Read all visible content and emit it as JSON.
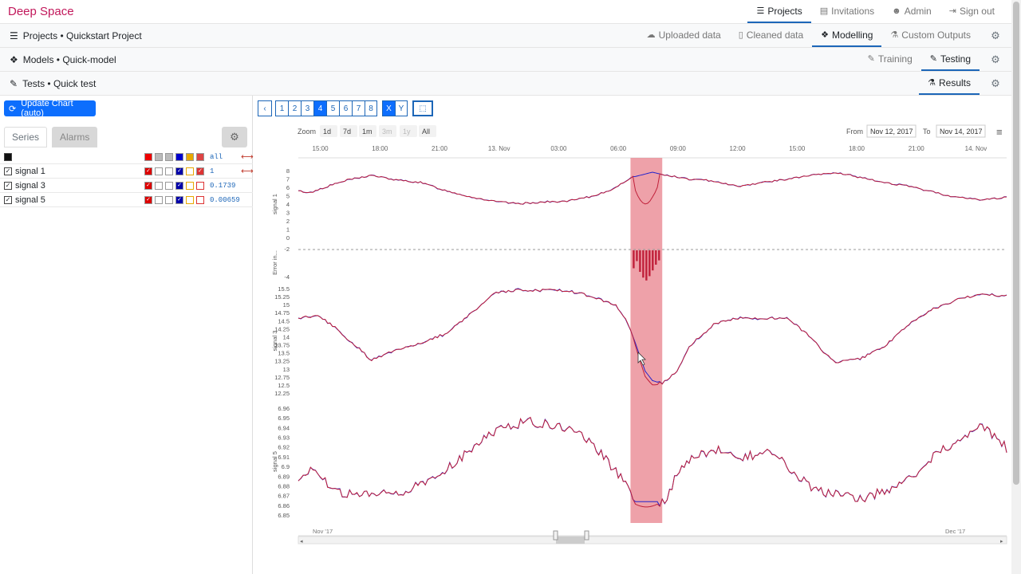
{
  "brand": "Deep Space",
  "topnav": {
    "projects": "Projects",
    "invitations": "Invitations",
    "admin": "Admin",
    "signout": "Sign out"
  },
  "breadcrumbs": {
    "projects": "Projects • Quickstart Project",
    "models": "Models • Quick-model",
    "tests": "Tests • Quick test"
  },
  "row2nav": {
    "uploaded": "Uploaded data",
    "cleaned": "Cleaned data",
    "modelling": "Modelling",
    "custom": "Custom Outputs"
  },
  "row3nav": {
    "training": "Training",
    "testing": "Testing"
  },
  "row4nav": {
    "results": "Results"
  },
  "left": {
    "update_button": "Update Chart (auto)",
    "tab_series": "Series",
    "tab_alarms": "Alarms",
    "all_label": "all",
    "series": [
      {
        "name": "signal 1",
        "value": "1"
      },
      {
        "name": "signal 3",
        "value": "0.1739"
      },
      {
        "name": "signal 5",
        "value": "0.00659"
      }
    ]
  },
  "toolbar": {
    "pages": [
      "1",
      "2",
      "3",
      "4",
      "5",
      "6",
      "7",
      "8"
    ],
    "active_page": "4",
    "x": "X",
    "y": "Y"
  },
  "chart": {
    "zoom_label": "Zoom",
    "zoom_options": [
      "1d",
      "7d",
      "1m",
      "3m",
      "1y",
      "All"
    ],
    "from_label": "From",
    "from": "Nov 12, 2017",
    "to_label": "To",
    "to": "Nov 14, 2017",
    "x_ticks": [
      "15:00",
      "18:00",
      "21:00",
      "13. Nov",
      "03:00",
      "06:00",
      "09:00",
      "12:00",
      "15:00",
      "18:00",
      "21:00",
      "14. Nov"
    ],
    "navigator_labels": [
      "Nov '17",
      "Dec '17"
    ],
    "colors": {
      "actual": "#c0203a",
      "predicted": "#2222cc",
      "highlight": "#e8818c"
    }
  },
  "chart_data": {
    "type": "line",
    "panes": [
      {
        "ylabel": "signal 1",
        "ticks": [
          "8",
          "7",
          "6",
          "5",
          "4",
          "3",
          "2",
          "1",
          "0"
        ],
        "ylim": [
          0,
          8.5
        ],
        "series": [
          {
            "name": "actual"
          },
          {
            "name": "predicted"
          }
        ],
        "anchors": [
          [
            0,
            5.9
          ],
          [
            0.5,
            5.7
          ],
          [
            1,
            6.3
          ],
          [
            2,
            7.3
          ],
          [
            3,
            7.9
          ],
          [
            4,
            7.3
          ],
          [
            5,
            7.0
          ],
          [
            6,
            6.0
          ],
          [
            7,
            5.2
          ],
          [
            8,
            4.6
          ],
          [
            9,
            4.3
          ],
          [
            10,
            4.5
          ],
          [
            11,
            4.6
          ],
          [
            12,
            5.2
          ],
          [
            13,
            6.3
          ],
          [
            13.6,
            7.6
          ],
          [
            14.5,
            8.3
          ],
          [
            14.9,
            8.0
          ],
          [
            16,
            7.4
          ],
          [
            17,
            7.2
          ],
          [
            18,
            6.5
          ],
          [
            19,
            7.0
          ],
          [
            20,
            7.4
          ],
          [
            21,
            7.9
          ],
          [
            22,
            8.2
          ],
          [
            22.5,
            8.0
          ],
          [
            23,
            7.6
          ],
          [
            24,
            7.0
          ],
          [
            25,
            6.5
          ],
          [
            26,
            5.8
          ],
          [
            26.5,
            5.4
          ],
          [
            27,
            5.1
          ],
          [
            28,
            4.8
          ],
          [
            29,
            5.1
          ]
        ]
      },
      {
        "ylabel": "Error in...",
        "ticks": [
          "-2",
          "-4"
        ],
        "ylim": [
          -5.5,
          0.5
        ]
      },
      {
        "ylabel": "signal 3",
        "ticks": [
          "15.5",
          "15.25",
          "15",
          "14.75",
          "14.5",
          "14.25",
          "14",
          "13.75",
          "13.5",
          "13.25",
          "13",
          "12.75",
          "12.5",
          "12.25"
        ],
        "ylim": [
          12.2,
          15.55
        ],
        "anchors": [
          [
            0,
            14.6
          ],
          [
            0.8,
            14.7
          ],
          [
            1.5,
            14.3
          ],
          [
            2.5,
            13.6
          ],
          [
            3,
            13.25
          ],
          [
            4,
            13.6
          ],
          [
            5,
            13.8
          ],
          [
            6,
            14.1
          ],
          [
            7,
            14.7
          ],
          [
            8,
            15.4
          ],
          [
            9,
            15.5
          ],
          [
            10,
            15.5
          ],
          [
            11,
            15.5
          ],
          [
            12,
            15.3
          ],
          [
            13,
            15.0
          ],
          [
            13.4,
            14.6
          ],
          [
            13.8,
            13.8
          ],
          [
            14.2,
            12.9
          ],
          [
            14.5,
            12.6
          ],
          [
            14.9,
            12.5
          ],
          [
            15.5,
            12.9
          ],
          [
            16,
            13.7
          ],
          [
            17,
            14.4
          ],
          [
            18,
            14.6
          ],
          [
            19,
            14.6
          ],
          [
            20,
            14.6
          ],
          [
            21,
            14.0
          ],
          [
            21.5,
            13.5
          ],
          [
            22,
            13.2
          ],
          [
            23,
            13.3
          ],
          [
            24,
            13.7
          ],
          [
            25,
            14.4
          ],
          [
            26,
            14.9
          ],
          [
            27,
            15.2
          ],
          [
            28,
            15.4
          ],
          [
            29,
            15.3
          ]
        ]
      },
      {
        "ylabel": "signal 5",
        "ticks": [
          "6.96",
          "6.95",
          "6.94",
          "6.93",
          "6.92",
          "6.91",
          "6.9",
          "6.89",
          "6.88",
          "6.87",
          "6.86",
          "6.85"
        ],
        "ylim": [
          6.845,
          6.965
        ],
        "anchors": [
          [
            0,
            6.885
          ],
          [
            0.6,
            6.9
          ],
          [
            1.5,
            6.87
          ],
          [
            2.5,
            6.867
          ],
          [
            3.5,
            6.868
          ],
          [
            4.5,
            6.873
          ],
          [
            5.5,
            6.885
          ],
          [
            6.5,
            6.905
          ],
          [
            7.5,
            6.93
          ],
          [
            8.5,
            6.945
          ],
          [
            9.5,
            6.95
          ],
          [
            10.5,
            6.945
          ],
          [
            11.5,
            6.94
          ],
          [
            12.5,
            6.91
          ],
          [
            13.4,
            6.88
          ],
          [
            13.8,
            6.86
          ],
          [
            14.5,
            6.86
          ],
          [
            15,
            6.86
          ],
          [
            15.5,
            6.89
          ],
          [
            16,
            6.905
          ],
          [
            17,
            6.92
          ],
          [
            18,
            6.91
          ],
          [
            19.5,
            6.915
          ],
          [
            20,
            6.9
          ],
          [
            21,
            6.875
          ],
          [
            22,
            6.868
          ],
          [
            23,
            6.863
          ],
          [
            24,
            6.872
          ],
          [
            25,
            6.885
          ],
          [
            26,
            6.91
          ],
          [
            27,
            6.93
          ],
          [
            28,
            6.945
          ],
          [
            29,
            6.92
          ]
        ]
      }
    ],
    "highlight_range_hours": [
      13.6,
      14.9
    ],
    "x_range_hours": [
      0,
      29
    ]
  }
}
